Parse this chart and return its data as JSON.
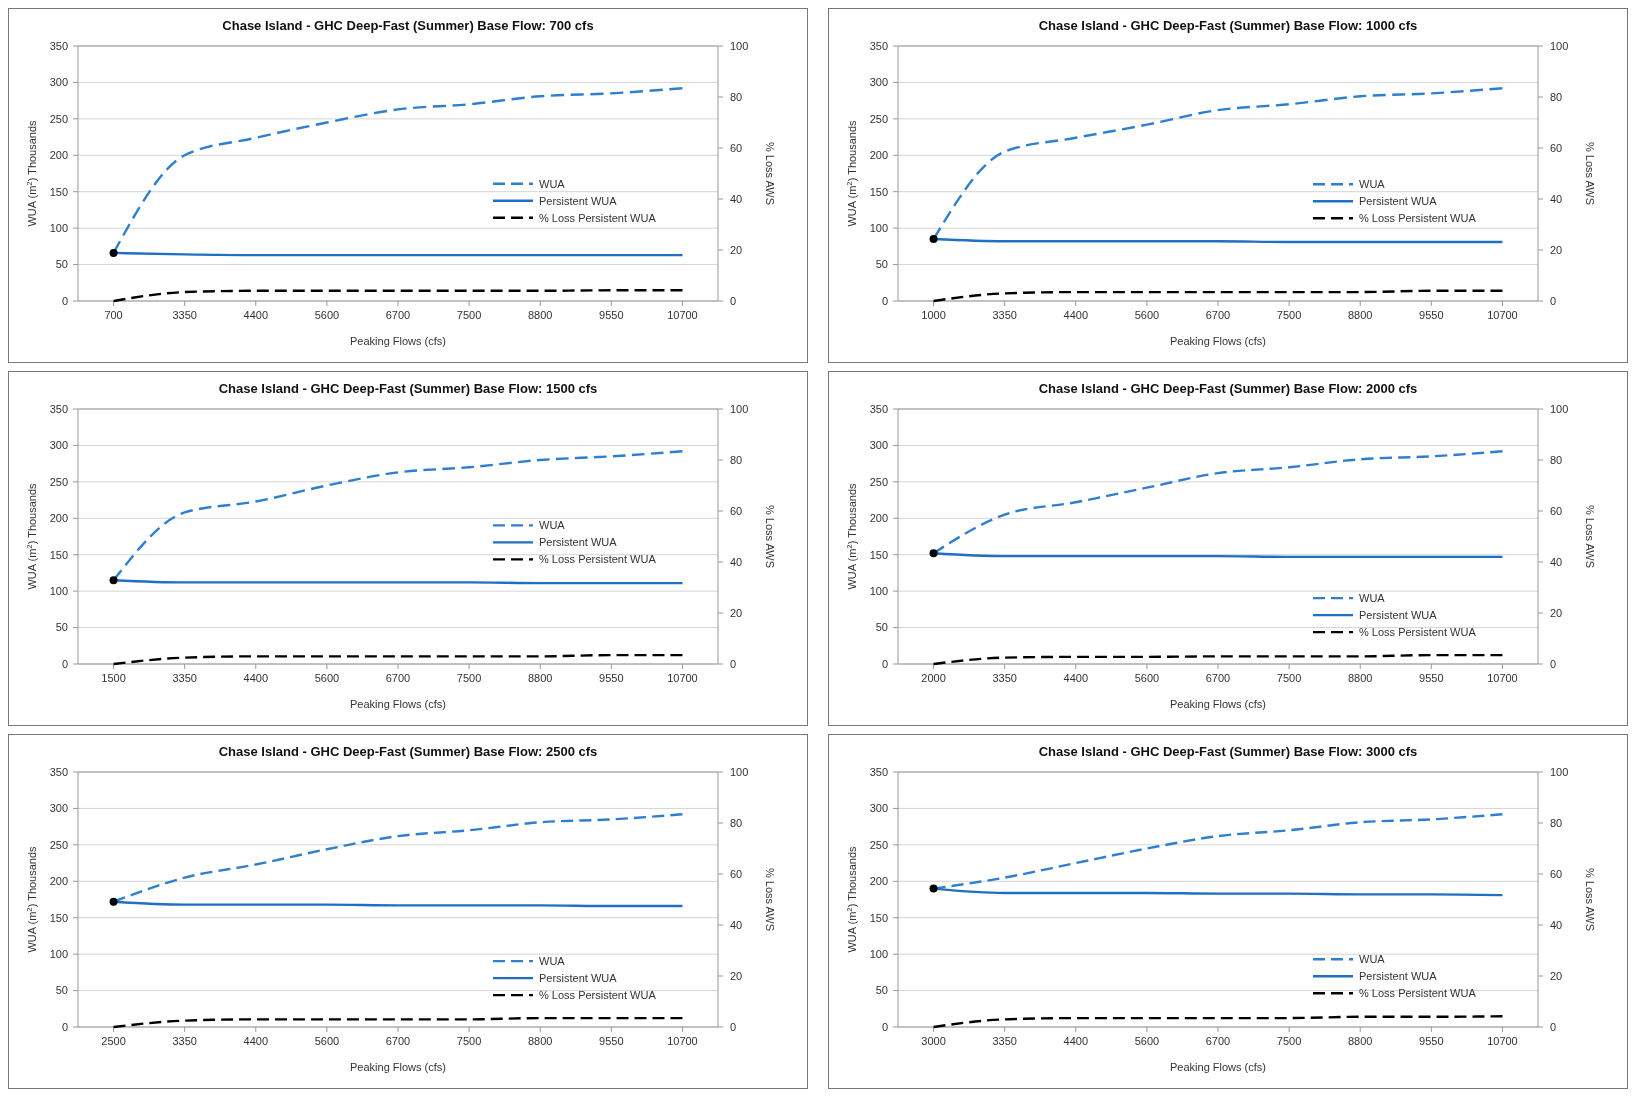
{
  "chart_data": [
    {
      "type": "line",
      "title": "Chase Island -  GHC Deep-Fast (Summer)   Base Flow: 700 cfs",
      "xlabel": "Peaking Flows (cfs)",
      "ylabel": "WUA (m$^{2}$)  Thousands",
      "y2label": "% Loss AWS",
      "categories": [
        "700",
        "3350",
        "4400",
        "5600",
        "6700",
        "7500",
        "8800",
        "9550",
        "10700"
      ],
      "ylim": [
        0,
        350
      ],
      "yticks": [
        0,
        50,
        100,
        150,
        200,
        250,
        300,
        350
      ],
      "y2lim": [
        0,
        100
      ],
      "y2ticks": [
        0,
        20,
        40,
        60,
        80,
        100
      ],
      "grid": "y",
      "legend": "bottom right",
      "series": [
        {
          "name": "WUA",
          "line_style": "dashed",
          "color": "#2e7fd0",
          "values": [
            66,
            200,
            224,
            245,
            263,
            270,
            281,
            285,
            292
          ]
        },
        {
          "name": "Persistent  WUA",
          "line_style": "solid",
          "color": "#1f6fc4",
          "values": [
            66,
            64,
            63,
            63,
            63,
            63,
            63,
            63,
            63
          ]
        },
        {
          "name": "% Loss Persistent WUA",
          "line_style": "dashed",
          "axis": "y2",
          "color": "#000000",
          "values": [
            0,
            3.5,
            4,
            4,
            4,
            4,
            4,
            4.2,
            4.2
          ]
        },
        {
          "type": "scatter",
          "marker": "circle",
          "color": "#000000",
          "values": [
            66,
            null,
            null,
            null,
            null,
            null,
            null,
            null,
            null
          ]
        }
      ]
    },
    {
      "type": "line",
      "title": "Chase Island -  GHC Deep-Fast (Summer)   Base Flow: 1000 cfs",
      "xlabel": "Peaking Flows (cfs)",
      "ylabel": "WUA (m$^{2}$)  Thousands",
      "y2label": "% Loss AWS",
      "categories": [
        "1000",
        "3350",
        "4400",
        "5600",
        "6700",
        "7500",
        "8800",
        "9550",
        "10700"
      ],
      "ylim": [
        0,
        350
      ],
      "yticks": [
        0,
        50,
        100,
        150,
        200,
        250,
        300,
        350
      ],
      "y2lim": [
        0,
        100
      ],
      "y2ticks": [
        0,
        20,
        40,
        60,
        80,
        100
      ],
      "grid": "y",
      "legend": "bottom right",
      "series": [
        {
          "name": "WUA",
          "line_style": "dashed",
          "color": "#2e7fd0",
          "values": [
            85,
            205,
            224,
            242,
            262,
            270,
            281,
            285,
            292
          ]
        },
        {
          "name": "Persistent  WUA",
          "line_style": "solid",
          "color": "#1f6fc4",
          "values": [
            85,
            82,
            82,
            82,
            82,
            81,
            81,
            81,
            81
          ]
        },
        {
          "name": "% Loss Persistent WUA",
          "line_style": "dashed",
          "axis": "y2",
          "color": "#000000",
          "values": [
            0,
            3,
            3.5,
            3.5,
            3.5,
            3.5,
            3.5,
            4,
            4
          ]
        },
        {
          "type": "scatter",
          "marker": "circle",
          "color": "#000000",
          "values": [
            85,
            null,
            null,
            null,
            null,
            null,
            null,
            null,
            null
          ]
        }
      ]
    },
    {
      "type": "line",
      "title": "Chase Island -  GHC Deep-Fast (Summer)   Base Flow: 1500 cfs",
      "xlabel": "Peaking Flows (cfs)",
      "ylabel": "WUA (m$^{2}$)  Thousands",
      "y2label": "% Loss AWS",
      "categories": [
        "1500",
        "3350",
        "4400",
        "5600",
        "6700",
        "7500",
        "8800",
        "9550",
        "10700"
      ],
      "ylim": [
        0,
        350
      ],
      "yticks": [
        0,
        50,
        100,
        150,
        200,
        250,
        300,
        350
      ],
      "y2lim": [
        0,
        100
      ],
      "y2ticks": [
        0,
        20,
        40,
        60,
        80,
        100
      ],
      "grid": "y",
      "legend": "bottom right",
      "series": [
        {
          "name": "WUA",
          "line_style": "dashed",
          "color": "#2e7fd0",
          "values": [
            115,
            208,
            223,
            245,
            263,
            270,
            280,
            285,
            292
          ]
        },
        {
          "name": "Persistent  WUA",
          "line_style": "solid",
          "color": "#1f6fc4",
          "values": [
            115,
            112,
            112,
            112,
            112,
            112,
            111,
            111,
            111
          ]
        },
        {
          "name": "% Loss Persistent WUA",
          "line_style": "dashed",
          "axis": "y2",
          "color": "#000000",
          "values": [
            0,
            2.5,
            3,
            3,
            3,
            3,
            3,
            3.5,
            3.5
          ]
        },
        {
          "type": "scatter",
          "marker": "circle",
          "color": "#000000",
          "values": [
            115,
            null,
            null,
            null,
            null,
            null,
            null,
            null,
            null
          ]
        }
      ]
    },
    {
      "type": "line",
      "title": "Chase Island -  GHC Deep-Fast (Summer)   Base Flow: 2000 cfs",
      "xlabel": "Peaking Flows (cfs)",
      "ylabel": "WUA (m$^{2}$)  Thousands",
      "y2label": "% Loss AWS",
      "categories": [
        "2000",
        "3350",
        "4400",
        "5600",
        "6700",
        "7500",
        "8800",
        "9550",
        "10700"
      ],
      "ylim": [
        0,
        350
      ],
      "yticks": [
        0,
        50,
        100,
        150,
        200,
        250,
        300,
        350
      ],
      "y2lim": [
        0,
        100
      ],
      "y2ticks": [
        0,
        20,
        40,
        60,
        80,
        100
      ],
      "grid": "y",
      "legend": "bottom right",
      "series": [
        {
          "name": "WUA",
          "line_style": "dashed",
          "color": "#2e7fd0",
          "values": [
            152,
            205,
            222,
            242,
            262,
            270,
            281,
            285,
            292
          ]
        },
        {
          "name": "Persistent  WUA",
          "line_style": "solid",
          "color": "#1f6fc4",
          "values": [
            152,
            148,
            148,
            148,
            148,
            147,
            147,
            147,
            147
          ]
        },
        {
          "name": "% Loss Persistent WUA",
          "line_style": "dashed",
          "axis": "y2",
          "color": "#000000",
          "values": [
            0,
            2.5,
            2.8,
            2.8,
            3,
            3,
            3,
            3.5,
            3.5
          ]
        },
        {
          "type": "scatter",
          "marker": "circle",
          "color": "#000000",
          "values": [
            152,
            null,
            null,
            null,
            null,
            null,
            null,
            null,
            null
          ]
        }
      ]
    },
    {
      "type": "line",
      "title": "Chase Island -  GHC Deep-Fast (Summer)   Base Flow: 2500 cfs",
      "xlabel": "Peaking Flows (cfs)",
      "ylabel": "WUA (m$^{2}$)  Thousands",
      "y2label": "% Loss AWS",
      "categories": [
        "2500",
        "3350",
        "4400",
        "5600",
        "6700",
        "7500",
        "8800",
        "9550",
        "10700"
      ],
      "ylim": [
        0,
        350
      ],
      "yticks": [
        0,
        50,
        100,
        150,
        200,
        250,
        300,
        350
      ],
      "y2lim": [
        0,
        100
      ],
      "y2ticks": [
        0,
        20,
        40,
        60,
        80,
        100
      ],
      "grid": "y",
      "legend": "bottom right",
      "series": [
        {
          "name": "WUA",
          "line_style": "dashed",
          "color": "#2e7fd0",
          "values": [
            172,
            205,
            223,
            244,
            262,
            270,
            281,
            285,
            292
          ]
        },
        {
          "name": "Persistent  WUA",
          "line_style": "solid",
          "color": "#1f6fc4",
          "values": [
            172,
            168,
            168,
            168,
            167,
            167,
            167,
            166,
            166
          ]
        },
        {
          "name": "% Loss Persistent WUA",
          "line_style": "dashed",
          "axis": "y2",
          "color": "#000000",
          "values": [
            0,
            2.5,
            3,
            3,
            3,
            3,
            3.5,
            3.5,
            3.5
          ]
        },
        {
          "type": "scatter",
          "marker": "circle",
          "color": "#000000",
          "values": [
            172,
            null,
            null,
            null,
            null,
            null,
            null,
            null,
            null
          ]
        }
      ]
    },
    {
      "type": "line",
      "title": "Chase Island -  GHC Deep-Fast (Summer)   Base Flow: 3000 cfs",
      "xlabel": "Peaking Flows (cfs)",
      "ylabel": "WUA (m$^{2}$)  Thousands",
      "y2label": "% Loss AWS",
      "categories": [
        "3000",
        "3350",
        "4400",
        "5600",
        "6700",
        "7500",
        "8800",
        "9550",
        "10700"
      ],
      "ylim": [
        0,
        350
      ],
      "yticks": [
        0,
        50,
        100,
        150,
        200,
        250,
        300,
        350
      ],
      "y2lim": [
        0,
        100
      ],
      "y2ticks": [
        0,
        20,
        40,
        60,
        80,
        100
      ],
      "grid": "y",
      "legend": "bottom right",
      "series": [
        {
          "name": "WUA",
          "line_style": "dashed",
          "color": "#2e7fd0",
          "values": [
            190,
            205,
            225,
            245,
            262,
            270,
            281,
            285,
            292
          ]
        },
        {
          "name": "Persistent  WUA",
          "line_style": "solid",
          "color": "#1f6fc4",
          "values": [
            190,
            184,
            184,
            184,
            183,
            183,
            182,
            182,
            181
          ]
        },
        {
          "name": "% Loss Persistent WUA",
          "line_style": "dashed",
          "axis": "y2",
          "color": "#000000",
          "values": [
            0,
            3,
            3.5,
            3.5,
            3.5,
            3.5,
            4,
            4,
            4.2
          ]
        },
        {
          "type": "scatter",
          "marker": "circle",
          "color": "#000000",
          "values": [
            190,
            null,
            null,
            null,
            null,
            null,
            null,
            null,
            null
          ]
        }
      ]
    }
  ]
}
